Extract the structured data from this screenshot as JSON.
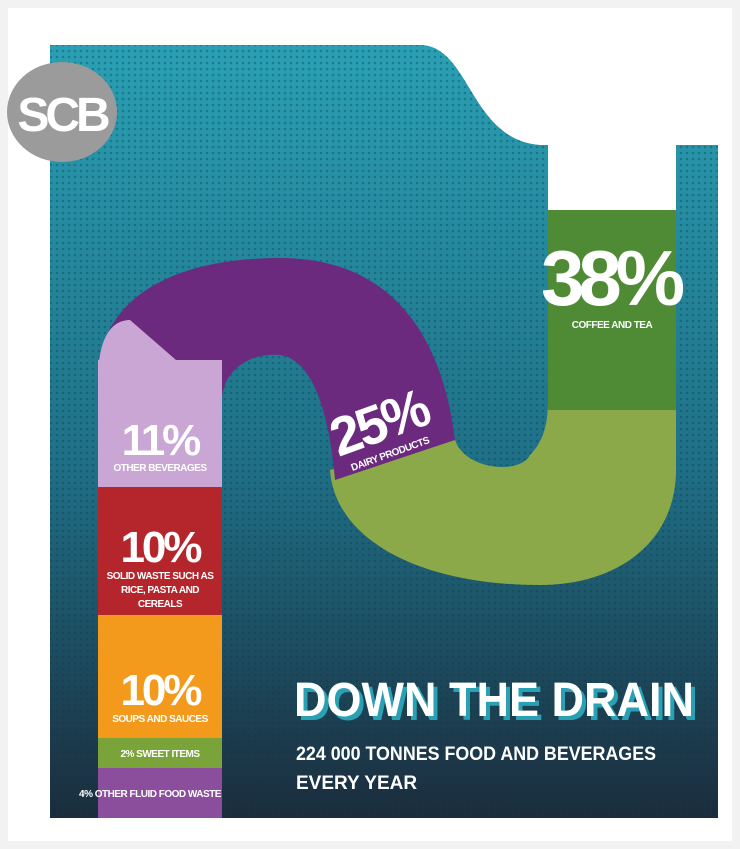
{
  "logo": "SCB",
  "title": "DOWN THE DRAIN",
  "subtitle_lines": [
    "224 000 TONNES FOOD AND BEVERAGES",
    "EVERY YEAR"
  ],
  "segments": [
    {
      "percent": "38%",
      "label": "COFFEE AND TEA"
    },
    {
      "percent": "25%",
      "label": "DAIRY PRODUCTS"
    },
    {
      "percent": "11%",
      "label": "OTHER BEVERAGES"
    },
    {
      "percent": "10%",
      "label_lines": [
        "SOLID WASTE SUCH AS",
        "RICE, PASTA AND",
        "CEREALS"
      ]
    },
    {
      "percent": "10%",
      "label": "SOUPS AND SAUCES"
    },
    {
      "label": "2% SWEET ITEMS"
    },
    {
      "label": "4% OTHER FLUID FOOD WASTE"
    }
  ]
}
